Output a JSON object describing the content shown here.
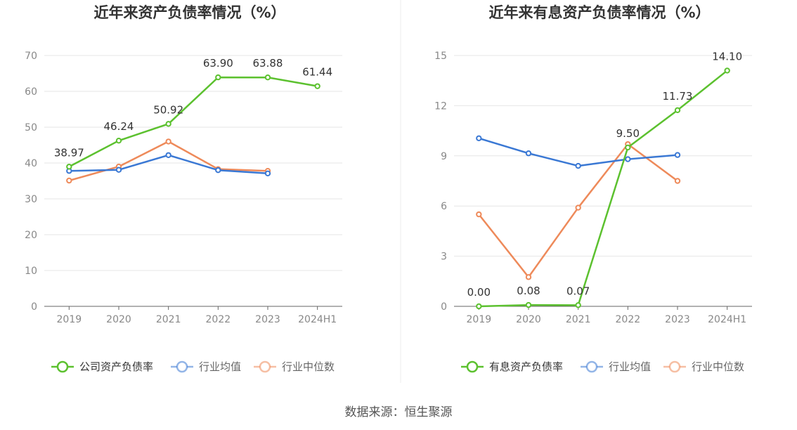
{
  "source_label": "数据来源：恒生聚源",
  "chart_data": [
    {
      "type": "line",
      "title": "近年来资产负债率情况（%）",
      "categories": [
        "2019",
        "2020",
        "2021",
        "2022",
        "2023",
        "2024H1"
      ],
      "ylim": [
        0,
        70
      ],
      "yticks": [
        0,
        10,
        20,
        30,
        40,
        50,
        60,
        70
      ],
      "grid": true,
      "legend_position": "bottom",
      "series": [
        {
          "name": "公司资产负债率",
          "color": "#5cc12f",
          "values": [
            38.97,
            46.24,
            50.92,
            63.9,
            63.88,
            61.44
          ],
          "labels": [
            "38.97",
            "46.24",
            "50.92",
            "63.90",
            "63.88",
            "61.44"
          ]
        },
        {
          "name": "行业均值",
          "color": "#3a78d4",
          "values": [
            37.8,
            38.1,
            42.2,
            38.0,
            37.1,
            null
          ]
        },
        {
          "name": "行业中位数",
          "color": "#ee8a5a",
          "values": [
            35.1,
            39.0,
            46.0,
            38.3,
            37.8,
            null
          ]
        }
      ]
    },
    {
      "type": "line",
      "title": "近年来有息资产负债率情况（%）",
      "categories": [
        "2019",
        "2020",
        "2021",
        "2022",
        "2023",
        "2024H1"
      ],
      "ylim": [
        0,
        15
      ],
      "yticks": [
        0,
        3,
        6,
        9,
        12,
        15
      ],
      "grid": true,
      "legend_position": "bottom",
      "series": [
        {
          "name": "有息资产负债率",
          "color": "#5cc12f",
          "values": [
            0.0,
            0.08,
            0.07,
            9.5,
            11.73,
            14.1
          ],
          "labels": [
            "0.00",
            "0.08",
            "0.07",
            "9.50",
            "11.73",
            "14.10"
          ]
        },
        {
          "name": "行业均值",
          "color": "#3a78d4",
          "values": [
            10.05,
            9.15,
            8.4,
            8.8,
            9.05,
            null
          ]
        },
        {
          "name": "行业中位数",
          "color": "#ee8a5a",
          "values": [
            5.5,
            1.75,
            5.9,
            9.7,
            7.5,
            null
          ]
        }
      ]
    }
  ]
}
